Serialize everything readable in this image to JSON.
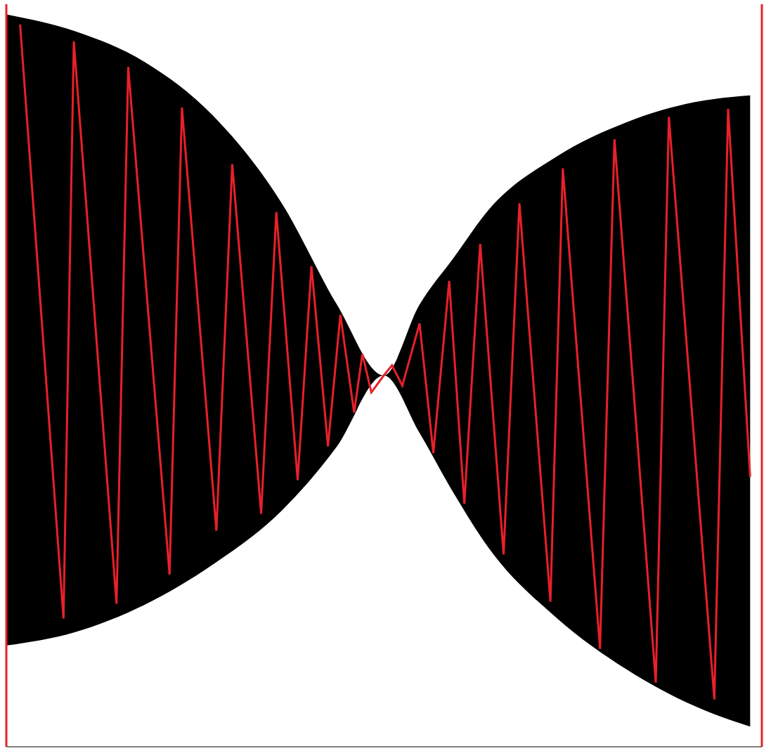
{
  "chart_data": {
    "type": "line",
    "xlim": [
      0,
      109.7
    ],
    "ylim": [
      -55,
      55
    ],
    "tick_labels": false,
    "grid": false,
    "series": [
      {
        "type": "area",
        "color": "#000000",
        "x": [
          0,
          10,
          20,
          30,
          40,
          48,
          54.8,
          60,
          65,
          70,
          80,
          90,
          100,
          108
        ],
        "low": [
          -40,
          -38,
          -34,
          -28,
          -20,
          -10.5,
          0,
          -8.5,
          -17.5,
          -25.5,
          -36,
          -43.5,
          -49,
          -52
        ],
        "high": [
          53.5,
          51,
          46.5,
          38.5,
          25.5,
          10.5,
          0,
          10.5,
          17.5,
          24.5,
          32.5,
          37.5,
          40.5,
          41.5
        ]
      },
      {
        "type": "line",
        "color": "#e8202a",
        "x": [
          2,
          8.3,
          9.8,
          16,
          17.7,
          23.7,
          25.5,
          30.5,
          32.8,
          37,
          39.2,
          42.3,
          44.3,
          46.7,
          48.5,
          50.5,
          51.7,
          53,
          54.8,
          56,
          57.5,
          60,
          62,
          64.3,
          66.5,
          68.8,
          72.2,
          74.5,
          79,
          80.8,
          86.2,
          88.3,
          94.3,
          96.2,
          102.8,
          104.8,
          108
        ],
        "values": [
          52,
          -36,
          49.5,
          -33.8,
          45.7,
          -29.5,
          39.7,
          -23,
          31.3,
          -20.5,
          24.2,
          -15.5,
          16.2,
          -10.5,
          9,
          -5.5,
          3.2,
          -2.5,
          0,
          1.5,
          -1.5,
          7.7,
          -11.5,
          14,
          -19,
          19.5,
          -26.5,
          25.5,
          -33.5,
          30.7,
          -40.5,
          35,
          -45.5,
          38.3,
          -48,
          39.5,
          -15
        ]
      }
    ]
  }
}
